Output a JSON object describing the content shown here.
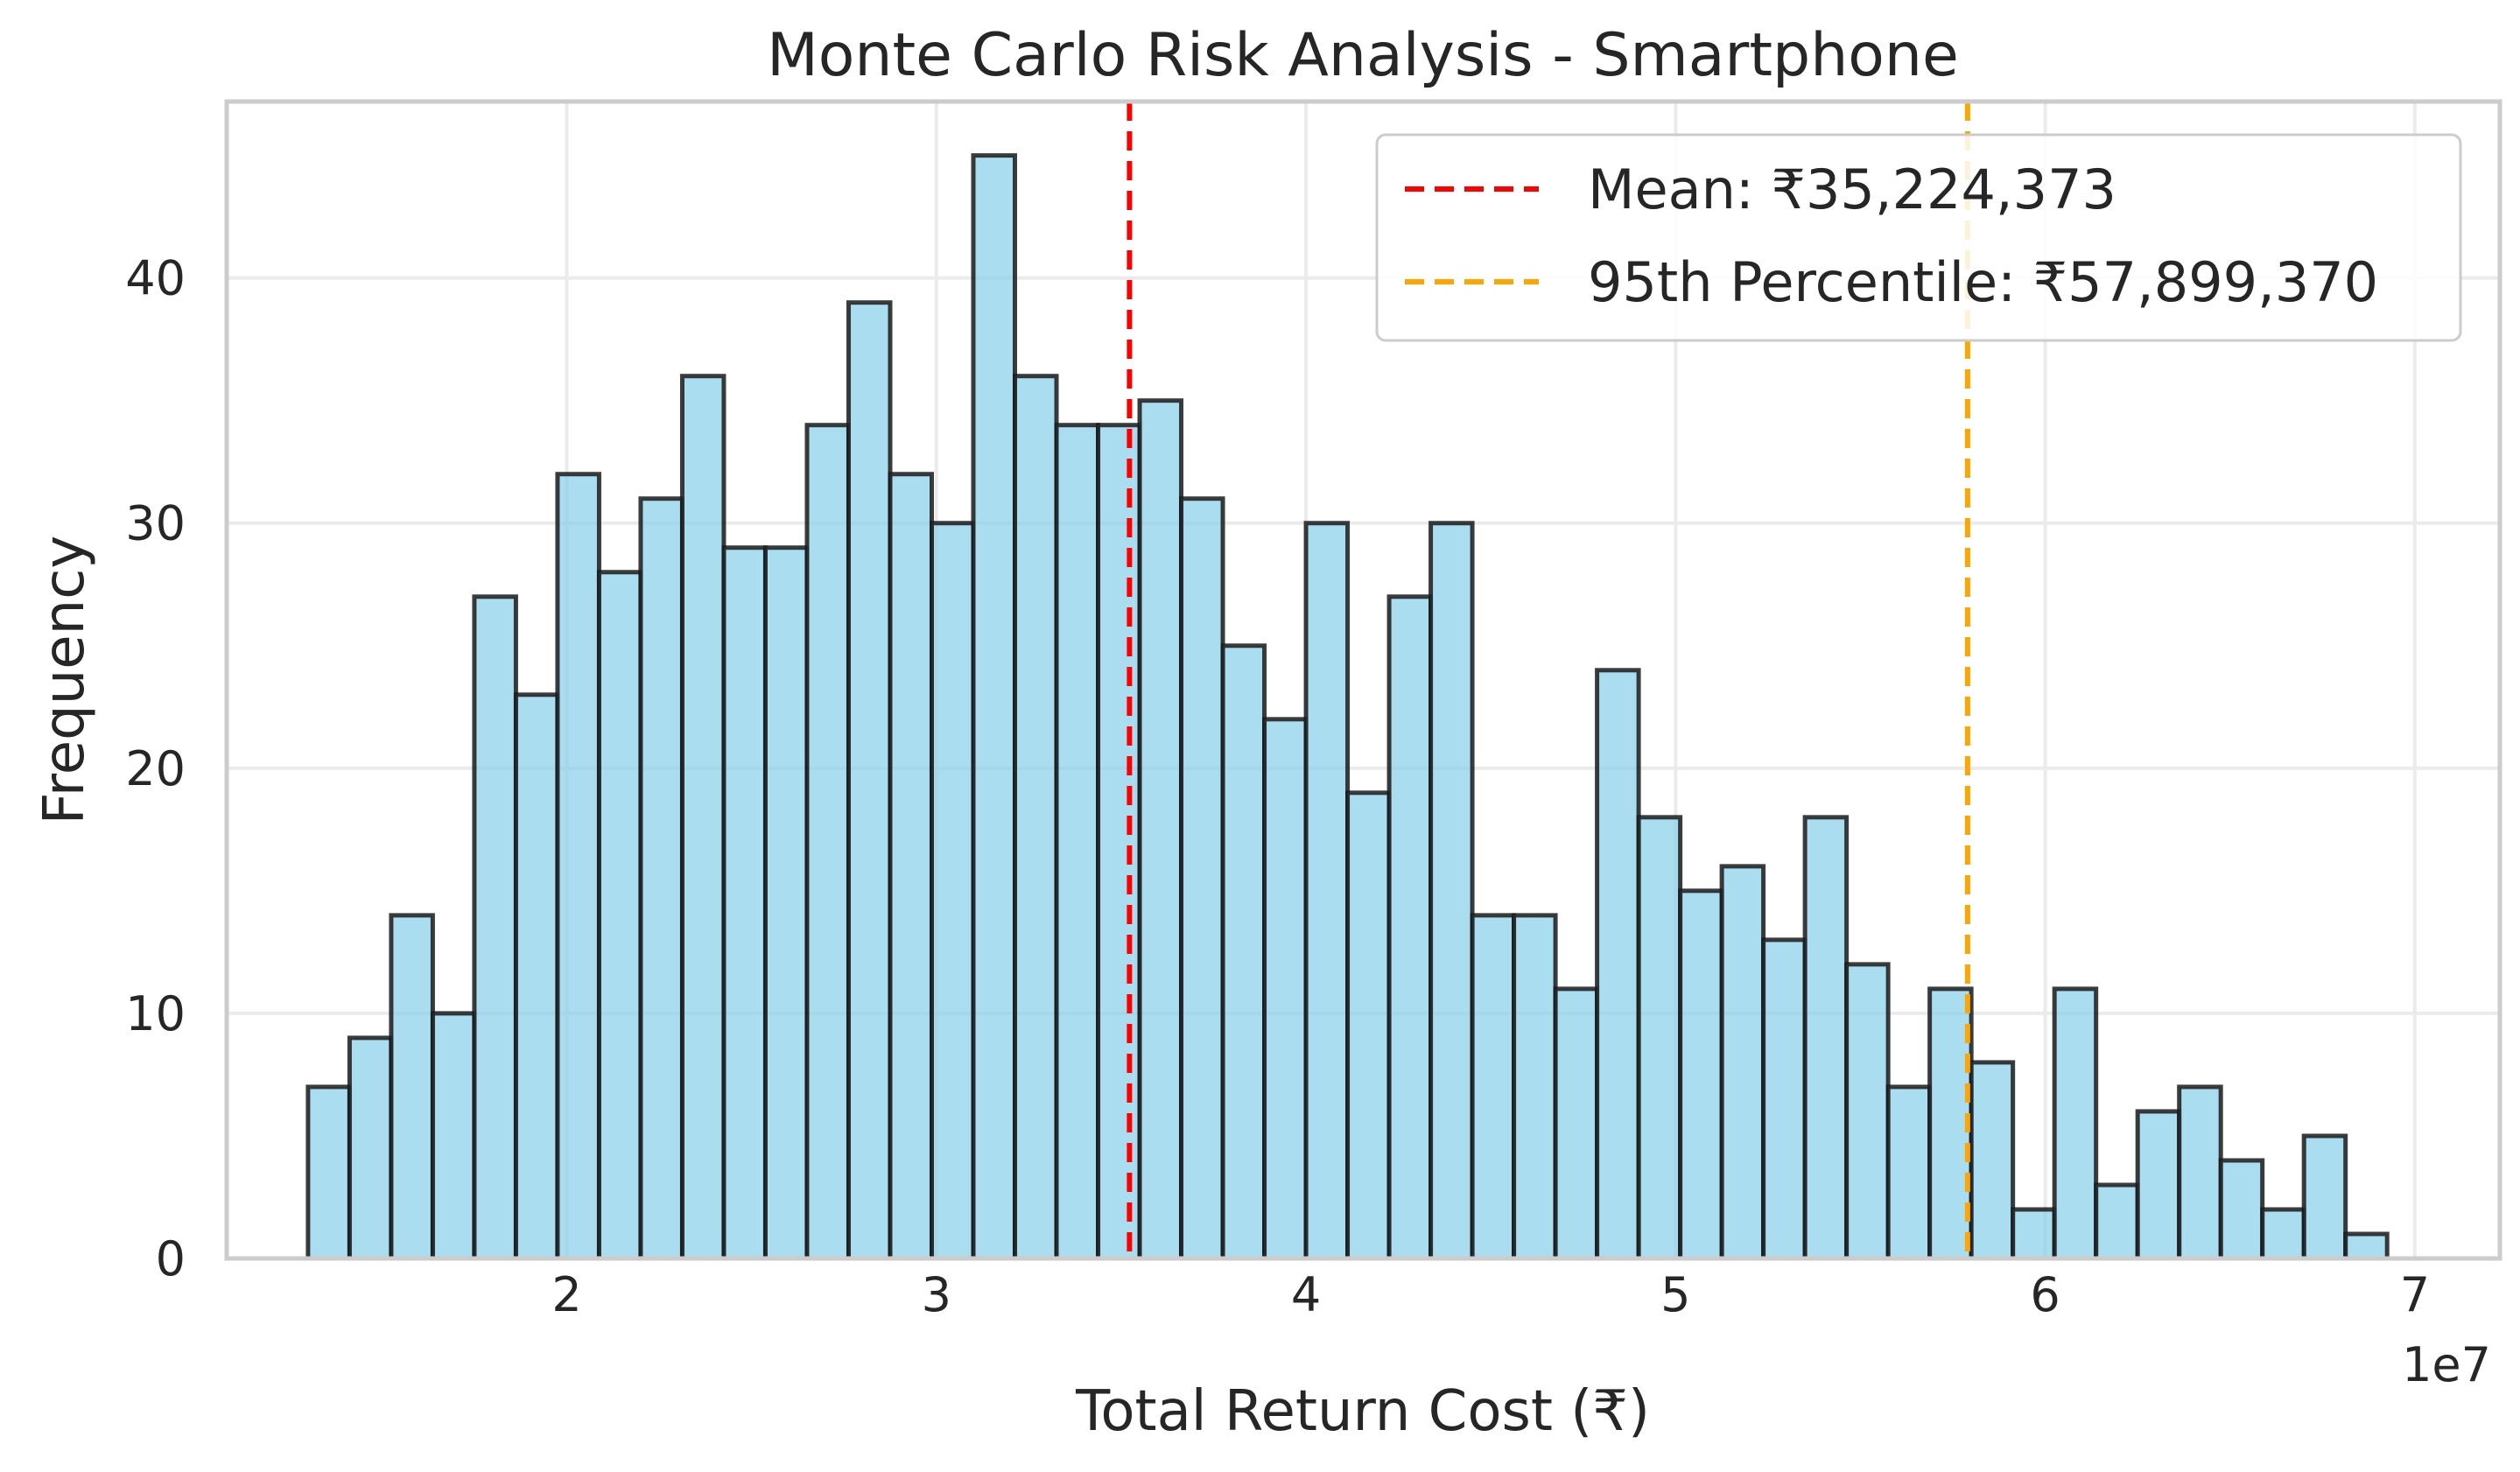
{
  "chart_data": {
    "type": "bar",
    "subtype": "histogram",
    "title": "Monte Carlo Risk Analysis - Smartphone",
    "xlabel": "Total Return Cost (₹)",
    "ylabel": "Frequency",
    "x_offset_label": "1e7",
    "xlim": [
      1.08,
      7.23
    ],
    "ylim": [
      0,
      47.2
    ],
    "xticks": [
      2,
      3,
      4,
      5,
      6,
      7
    ],
    "xtick_labels": [
      "2",
      "3",
      "4",
      "5",
      "6",
      "7"
    ],
    "yticks": [
      0,
      10,
      20,
      30,
      40
    ],
    "ytick_labels": [
      "0",
      "10",
      "20",
      "30",
      "40"
    ],
    "grid": true,
    "bar_color": "#87CEEB",
    "bar_edge_color": "#1a1a1a",
    "bin_start": 1.3,
    "bin_width": 0.1125,
    "values": [
      7,
      9,
      14,
      10,
      27,
      23,
      32,
      28,
      31,
      36,
      29,
      29,
      34,
      39,
      32,
      30,
      45,
      36,
      34,
      34,
      35,
      31,
      25,
      22,
      30,
      19,
      27,
      30,
      14,
      14,
      11,
      24,
      18,
      15,
      16,
      13,
      18,
      12,
      7,
      11,
      8,
      2,
      11,
      3,
      6,
      7,
      4,
      2,
      5,
      1
    ],
    "vlines": [
      {
        "x": 3.5224373,
        "color": "#ff0000",
        "label": "Mean: ₹35,224,373"
      },
      {
        "x": 5.789937,
        "color": "#ffa500",
        "label": "95th Percentile: ₹57,899,370"
      }
    ],
    "legend_position": "upper right"
  }
}
